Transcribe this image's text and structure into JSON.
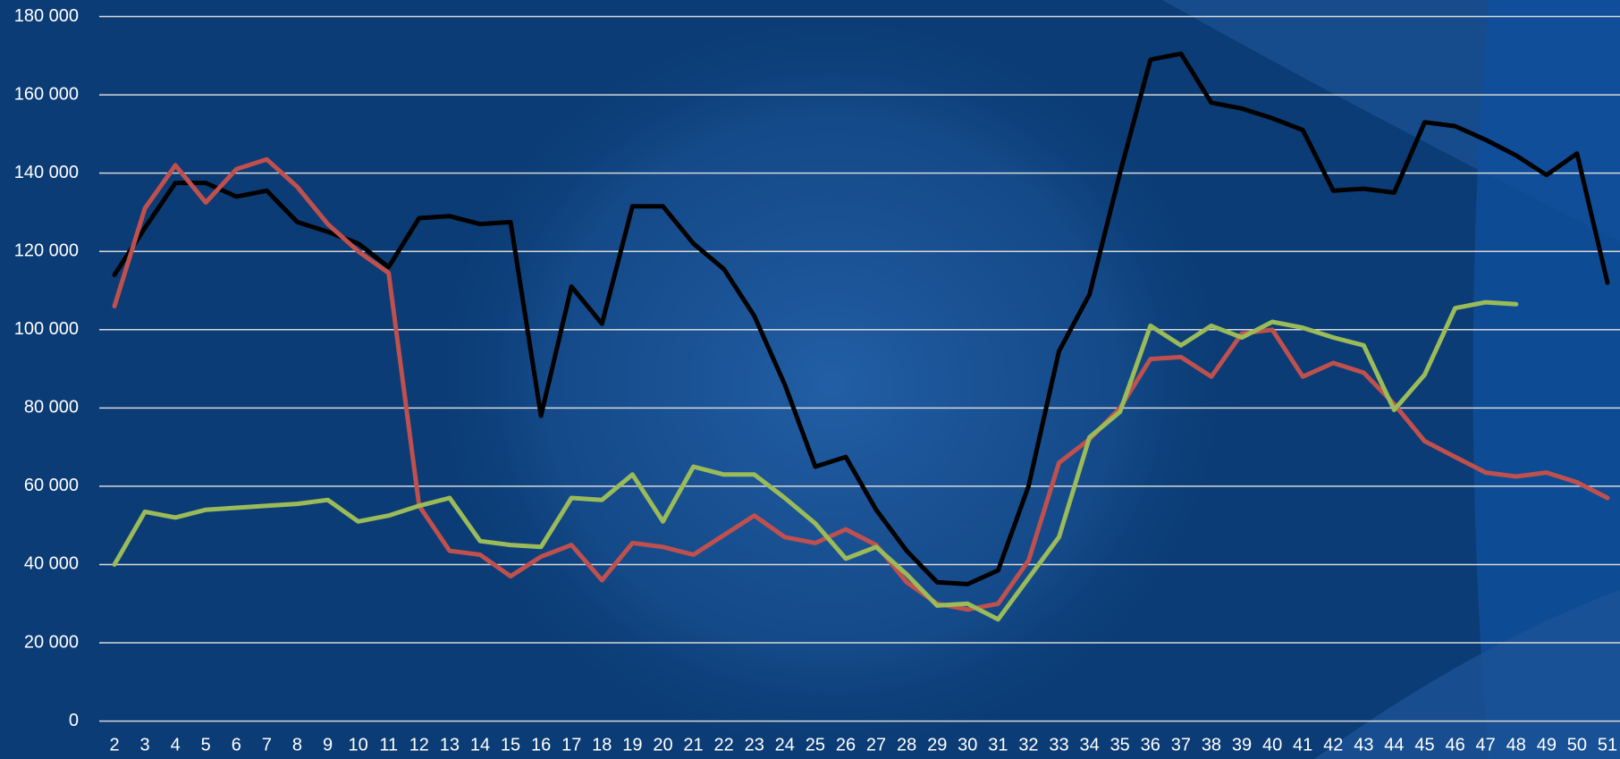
{
  "chart_data": {
    "type": "line",
    "categories": [
      "2",
      "3",
      "4",
      "5",
      "6",
      "7",
      "8",
      "9",
      "10",
      "11",
      "12",
      "13",
      "14",
      "15",
      "16",
      "17",
      "18",
      "19",
      "20",
      "21",
      "22",
      "23",
      "24",
      "25",
      "26",
      "27",
      "28",
      "29",
      "30",
      "31",
      "32",
      "33",
      "34",
      "35",
      "36",
      "37",
      "38",
      "39",
      "40",
      "41",
      "42",
      "43",
      "44",
      "45",
      "46",
      "47",
      "48",
      "49",
      "50",
      "51"
    ],
    "series": [
      {
        "color": "#000000",
        "values": [
          114000,
          126000,
          137500,
          137500,
          134000,
          135500,
          127500,
          125000,
          122000,
          116000,
          128500,
          129000,
          127000,
          127500,
          78000,
          111000,
          101500,
          131500,
          131500,
          122000,
          115500,
          103500,
          86000,
          65000,
          67500,
          54000,
          43500,
          35500,
          35000,
          38500,
          60000,
          94500,
          109000,
          140000,
          169000,
          170500,
          158000,
          156500,
          154000,
          151000,
          135500,
          136000,
          135000,
          153000,
          152000,
          148500,
          144500,
          139500,
          145000,
          112000
        ]
      },
      {
        "color": "#c0504d",
        "values": [
          106000,
          131000,
          142000,
          132500,
          141000,
          143500,
          136500,
          127000,
          120000,
          114500,
          55000,
          43500,
          42500,
          37000,
          42000,
          45000,
          36000,
          45500,
          44500,
          42500,
          47500,
          52500,
          47000,
          45500,
          49000,
          45000,
          35500,
          30000,
          28500,
          30000,
          41000,
          66000,
          72000,
          80000,
          92500,
          93000,
          88000,
          99000,
          100000,
          88000,
          91500,
          89000,
          81000,
          71500,
          67500,
          63500,
          62500,
          63500,
          61000,
          57000
        ]
      },
      {
        "color": "#9bbb59",
        "values": [
          40000,
          53500,
          52000,
          54000,
          54500,
          55000,
          55500,
          56500,
          51000,
          52500,
          55000,
          57000,
          46000,
          45000,
          44500,
          57000,
          56500,
          63000,
          51000,
          65000,
          63000,
          63000,
          57000,
          50500,
          41500,
          44500,
          37500,
          29500,
          30000,
          26000,
          36500,
          47000,
          72500,
          79000,
          101000,
          96000,
          101000,
          98000,
          102000,
          100500,
          98000,
          96000,
          79500,
          88500,
          105500,
          107000,
          106500,
          null,
          null,
          null
        ]
      }
    ],
    "ylim": [
      0,
      180000
    ],
    "yticks": [
      {
        "value": 0,
        "label": "0"
      },
      {
        "value": 20000,
        "label": "20 000"
      },
      {
        "value": 40000,
        "label": "40 000"
      },
      {
        "value": 60000,
        "label": "60 000"
      },
      {
        "value": 80000,
        "label": "80 000"
      },
      {
        "value": 100000,
        "label": "100 000"
      },
      {
        "value": 120000,
        "label": "120 000"
      },
      {
        "value": 140000,
        "label": "140 000"
      },
      {
        "value": 160000,
        "label": "160 000"
      },
      {
        "value": 180000,
        "label": "180 000"
      }
    ],
    "grid": true
  }
}
